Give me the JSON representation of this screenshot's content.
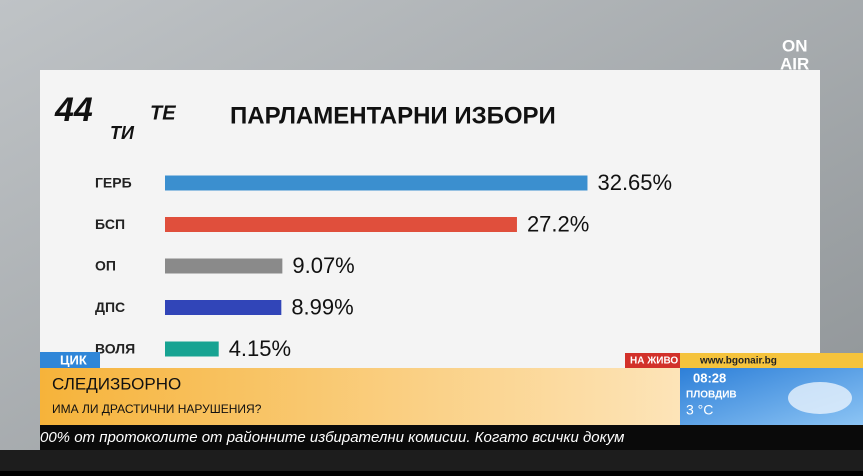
{
  "logo": {
    "number": "44",
    "mid": "ТИ",
    "end": "ТЕ"
  },
  "channel_logo": {
    "top": "ON",
    "bottom": "AIR"
  },
  "chart_data": {
    "type": "bar",
    "orientation": "horizontal",
    "title": "ПАРЛАМЕНТАРНИ ИЗБОРИ",
    "categories": [
      "ГЕРБ",
      "БСП",
      "ОП",
      "ДПС",
      "ВОЛЯ"
    ],
    "values": [
      32.65,
      27.2,
      9.07,
      8.99,
      4.15
    ],
    "value_labels": [
      "32.65%",
      "27.2%",
      "9.07%",
      "8.99%",
      "4.15%"
    ],
    "colors": [
      "#3b8fcf",
      "#e04f3c",
      "#8a8a8a",
      "#3145b8",
      "#17a392"
    ],
    "xlim": [
      0,
      33
    ]
  },
  "ticker": {
    "tag": "ЦИК",
    "headline": "СЛЕДИЗБОРНО",
    "subline": "ИМА ЛИ ДРАСТИЧНИ НАРУШЕНИЯ?",
    "live": "НА ЖИВО",
    "url": "www.bgonair.bg",
    "time": "08:28",
    "city": "ПЛОВДИВ",
    "temperature": "3 °C",
    "crawl": "00% от протоколите от районните избирателни комисии. Когато всички докум"
  }
}
